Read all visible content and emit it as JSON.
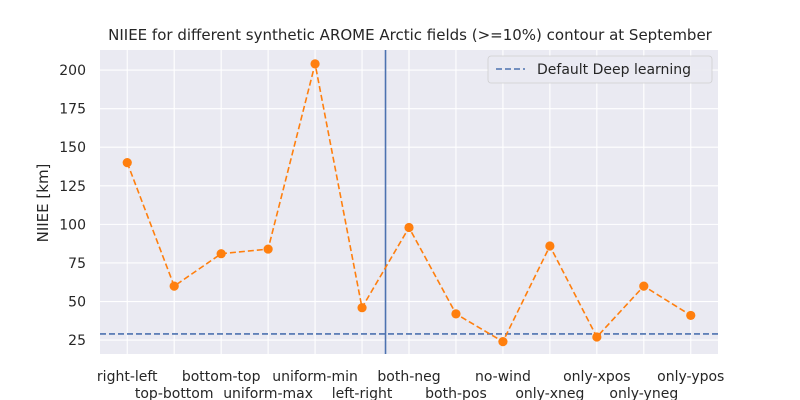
{
  "chart_data": {
    "type": "line",
    "title": "NIIEE for different synthetic AROME Arctic fields (>=10%) contour at September",
    "xlabel": "",
    "ylabel": "NIIEE [km]",
    "categories": [
      "right-left",
      "top-bottom",
      "bottom-top",
      "uniform-max",
      "uniform-min",
      "left-right",
      "both-neg",
      "both-pos",
      "no-wind",
      "only-xneg",
      "only-xpos",
      "only-yneg",
      "only-ypos"
    ],
    "series": [
      {
        "values": [
          140,
          60,
          81,
          84,
          204,
          46,
          98,
          42,
          24,
          86,
          27,
          60,
          41
        ],
        "color": "#ff7f0e",
        "style": "dashed",
        "marker": "circle"
      }
    ],
    "reference_lines": [
      {
        "orientation": "horizontal",
        "y": 29,
        "name": "Default Deep learning",
        "color": "#4c72b0",
        "style": "dashed"
      },
      {
        "orientation": "vertical",
        "x": 5.5,
        "color": "#4c72b0",
        "style": "solid"
      }
    ],
    "ylim": [
      16,
      213
    ],
    "xlim": [
      -0.58,
      12.58
    ],
    "yticks": [
      25,
      50,
      75,
      100,
      125,
      150,
      175,
      200
    ],
    "grid": true,
    "legend_position": "top-right",
    "background": "#eaeaf2"
  }
}
